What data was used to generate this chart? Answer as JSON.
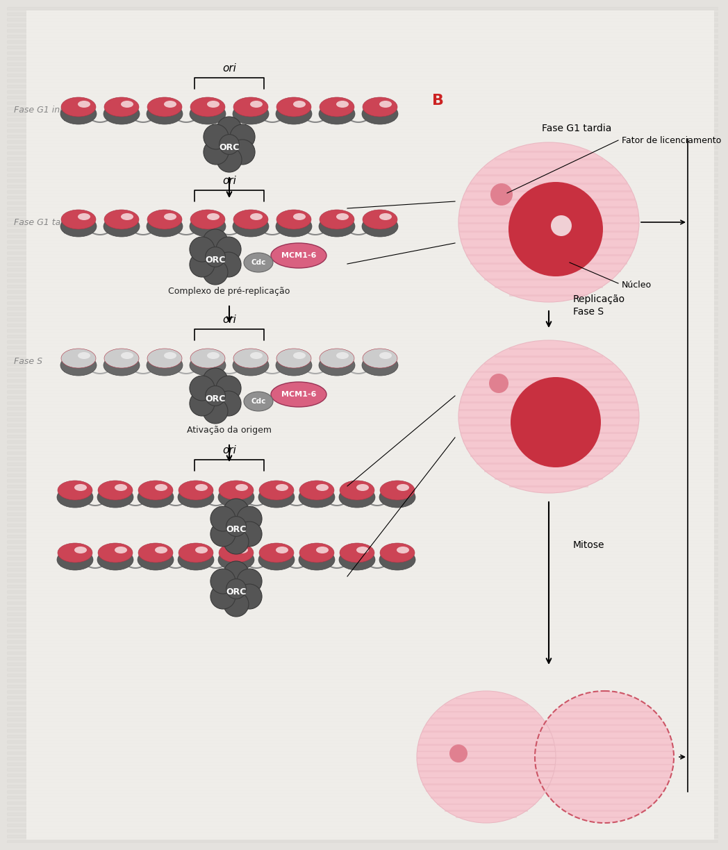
{
  "bg_color": "#e4e2de",
  "bg_stripe_color": "#d8d6d2",
  "content_bg": "#f0eeea",
  "cell_fill": "#f5c8d0",
  "cell_stripe": "#eab8c2",
  "nucleus_color": "#c83040",
  "nucleolus_color": "#f0d0d5",
  "small_dot_color": "#e08090",
  "chromatin_dark": "#5a5a5a",
  "chromatin_dark2": "#484848",
  "chromatin_pink": "#cc4455",
  "chromatin_pink_light": "#dd6677",
  "chromatin_white_hi": "#f8eeee",
  "chromatin_grey_hi": "#e0dede",
  "orc_color": "#555555",
  "orc_dark": "#3a3a3a",
  "mcm_color": "#d96080",
  "cdc_color": "#909090",
  "arrow_color": "#333333",
  "text_color": "#222222",
  "left_label_color": "#888888",
  "B_color": "#cc2222",
  "label_left": [
    "Fase G1 inicial",
    "Fase G1 tardia",
    "Fase S",
    ""
  ],
  "label_B": "B",
  "label_ori": "ori",
  "label_orc": "ORC",
  "label_mcm": "MCM1-6",
  "label_cdc": "Cdc",
  "text_complexo": "Complexo de pré-replicação",
  "text_ativacao": "Ativação da origem",
  "text_fase_g1_tardia": "Fase G1 tardia",
  "text_fator": "Fator de licenciamento",
  "text_nucleo": "Núcleo",
  "text_replicacao": "Replicação\nFase S",
  "text_mitose": "Mitose"
}
